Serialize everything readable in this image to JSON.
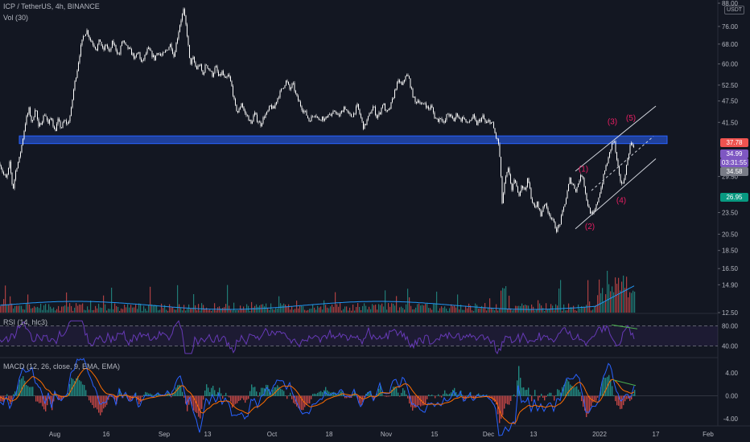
{
  "symbol_legend": "ICP / TetherUS, 4h, BINANCE",
  "volume_legend": "Vol (30)",
  "rsi_legend": "RSI (14, hlc3)",
  "macd_legend": "MACD (12, 26, close, 9, EMA, EMA)",
  "currency_badge": "USDT",
  "price_tags": {
    "high": "37.78",
    "last": "34.99",
    "countdown": "03:31:55",
    "mid": "34.58",
    "low": "26.95"
  },
  "colors": {
    "background": "#131722",
    "candle": "#ffffff",
    "zone": "#2962ff",
    "channel": "#d1d4dc",
    "wave_labels": "#e91e63",
    "volume_up": "#26a69a",
    "volume_down": "#ef5350",
    "volume_ma": "#2196f3",
    "rsi_line": "#673ab7",
    "macd_line": "#2962ff",
    "signal_line": "#ff6d00",
    "divergence": "#4caf50"
  },
  "chart_data": {
    "type": "candlestick",
    "price_axis": {
      "scale": "log",
      "range": [
        12.5,
        88
      ],
      "ticks": [
        "88.00",
        "76.00",
        "68.00",
        "60.00",
        "52.50",
        "47.50",
        "41.50",
        "34.58",
        "29.50",
        "23.50",
        "20.50",
        "18.50",
        "16.50",
        "14.90",
        "12.50"
      ]
    },
    "time_axis": {
      "ticks": [
        "Aug",
        "16",
        "Sep",
        "13",
        "Oct",
        "18",
        "Nov",
        "15",
        "Dec",
        "13",
        "2022",
        "17",
        "Feb"
      ]
    },
    "price_path": [
      [
        0,
        32
      ],
      [
        4,
        30
      ],
      [
        8,
        29
      ],
      [
        12,
        32
      ],
      [
        16,
        27
      ],
      [
        20,
        31
      ],
      [
        24,
        33
      ],
      [
        28,
        37
      ],
      [
        32,
        42
      ],
      [
        36,
        45
      ],
      [
        40,
        41
      ],
      [
        44,
        46
      ],
      [
        48,
        40
      ],
      [
        52,
        42
      ],
      [
        56,
        44
      ],
      [
        60,
        41
      ],
      [
        64,
        43
      ],
      [
        68,
        39
      ],
      [
        72,
        42
      ],
      [
        76,
        40
      ],
      [
        80,
        42
      ],
      [
        84,
        41
      ],
      [
        88,
        44
      ],
      [
        92,
        52
      ],
      [
        96,
        58
      ],
      [
        100,
        66
      ],
      [
        104,
        72
      ],
      [
        108,
        74
      ],
      [
        112,
        70
      ],
      [
        116,
        68
      ],
      [
        120,
        66
      ],
      [
        124,
        70
      ],
      [
        128,
        65
      ],
      [
        132,
        68
      ],
      [
        136,
        64
      ],
      [
        140,
        69
      ],
      [
        144,
        66
      ],
      [
        148,
        63
      ],
      [
        152,
        70
      ],
      [
        156,
        67
      ],
      [
        160,
        66
      ],
      [
        164,
        64
      ],
      [
        168,
        62
      ],
      [
        172,
        65
      ],
      [
        176,
        60
      ],
      [
        180,
        63
      ],
      [
        184,
        66
      ],
      [
        188,
        64
      ],
      [
        192,
        62
      ],
      [
        196,
        65
      ],
      [
        200,
        63
      ],
      [
        204,
        64
      ],
      [
        208,
        66
      ],
      [
        212,
        68
      ],
      [
        216,
        63
      ],
      [
        220,
        70
      ],
      [
        224,
        78
      ],
      [
        228,
        84
      ],
      [
        232,
        74
      ],
      [
        236,
        60
      ],
      [
        240,
        62
      ],
      [
        244,
        58
      ],
      [
        248,
        60
      ],
      [
        252,
        56
      ],
      [
        256,
        60
      ],
      [
        260,
        58
      ],
      [
        264,
        56
      ],
      [
        268,
        59
      ],
      [
        272,
        55
      ],
      [
        276,
        57
      ],
      [
        280,
        54
      ],
      [
        284,
        56
      ],
      [
        288,
        52
      ],
      [
        292,
        46
      ],
      [
        296,
        44
      ],
      [
        300,
        47
      ],
      [
        304,
        44
      ],
      [
        308,
        43
      ],
      [
        312,
        41
      ],
      [
        316,
        44
      ],
      [
        320,
        42
      ],
      [
        324,
        41
      ],
      [
        328,
        43
      ],
      [
        332,
        44
      ],
      [
        336,
        46
      ],
      [
        340,
        45
      ],
      [
        344,
        48
      ],
      [
        348,
        50
      ],
      [
        352,
        52
      ],
      [
        356,
        54
      ],
      [
        360,
        51
      ],
      [
        364,
        53
      ],
      [
        368,
        49
      ],
      [
        372,
        47
      ],
      [
        376,
        45
      ],
      [
        380,
        44
      ],
      [
        384,
        42
      ],
      [
        388,
        43
      ],
      [
        392,
        44
      ],
      [
        396,
        42
      ],
      [
        400,
        43
      ],
      [
        404,
        42
      ],
      [
        408,
        44
      ],
      [
        412,
        43
      ],
      [
        416,
        45
      ],
      [
        420,
        43
      ],
      [
        424,
        44
      ],
      [
        428,
        46
      ],
      [
        432,
        44
      ],
      [
        436,
        43
      ],
      [
        440,
        44
      ],
      [
        444,
        46
      ],
      [
        448,
        43
      ],
      [
        452,
        40
      ],
      [
        456,
        42
      ],
      [
        460,
        44
      ],
      [
        464,
        46
      ],
      [
        468,
        43
      ],
      [
        472,
        44
      ],
      [
        476,
        47
      ],
      [
        480,
        44
      ],
      [
        484,
        45
      ],
      [
        488,
        48
      ],
      [
        492,
        52
      ],
      [
        496,
        54
      ],
      [
        500,
        52
      ],
      [
        504,
        56
      ],
      [
        508,
        55
      ],
      [
        512,
        50
      ],
      [
        516,
        47
      ],
      [
        520,
        48
      ],
      [
        524,
        46
      ],
      [
        528,
        47
      ],
      [
        532,
        45
      ],
      [
        536,
        46
      ],
      [
        540,
        43
      ],
      [
        544,
        42
      ],
      [
        548,
        43
      ],
      [
        552,
        41
      ],
      [
        556,
        44
      ],
      [
        560,
        43
      ],
      [
        564,
        42
      ],
      [
        568,
        44
      ],
      [
        572,
        42
      ],
      [
        576,
        43
      ],
      [
        580,
        41
      ],
      [
        584,
        42
      ],
      [
        588,
        43
      ],
      [
        592,
        41
      ],
      [
        596,
        42
      ],
      [
        600,
        43
      ],
      [
        604,
        41
      ],
      [
        608,
        42
      ],
      [
        612,
        41
      ],
      [
        616,
        38
      ],
      [
        620,
        36
      ],
      [
        624,
        25
      ],
      [
        628,
        29
      ],
      [
        632,
        31
      ],
      [
        636,
        27
      ],
      [
        640,
        29
      ],
      [
        644,
        26
      ],
      [
        648,
        28
      ],
      [
        652,
        27
      ],
      [
        656,
        29
      ],
      [
        660,
        26
      ],
      [
        664,
        24
      ],
      [
        668,
        25
      ],
      [
        672,
        23
      ],
      [
        676,
        25
      ],
      [
        680,
        24
      ],
      [
        684,
        23
      ],
      [
        688,
        22
      ],
      [
        692,
        21
      ],
      [
        696,
        22
      ],
      [
        700,
        24
      ],
      [
        704,
        26
      ],
      [
        708,
        29
      ],
      [
        712,
        28
      ],
      [
        716,
        27
      ],
      [
        720,
        29
      ],
      [
        724,
        30
      ],
      [
        728,
        26
      ],
      [
        732,
        24
      ],
      [
        736,
        23
      ],
      [
        740,
        24
      ],
      [
        744,
        26
      ],
      [
        748,
        28
      ],
      [
        752,
        31
      ],
      [
        756,
        33
      ],
      [
        760,
        36
      ],
      [
        763,
        37.2
      ],
      [
        766,
        33
      ],
      [
        770,
        29
      ],
      [
        774,
        28
      ],
      [
        778,
        31
      ],
      [
        782,
        35
      ],
      [
        785,
        37
      ],
      [
        788,
        35
      ]
    ],
    "resistance_zone": {
      "from": 36.3,
      "to": 38.1
    },
    "wave_labels": [
      {
        "label": "(1)",
        "x": 725,
        "price": 30.4
      },
      {
        "label": "(2)",
        "x": 733,
        "price": 21.2
      },
      {
        "label": "(3)",
        "x": 761,
        "price": 41.0
      },
      {
        "label": "(4)",
        "x": 772,
        "price": 25.0
      },
      {
        "label": "(5)",
        "x": 784,
        "price": 42.0
      }
    ],
    "channel_lines": [
      {
        "from": [
          715,
          21.2
        ],
        "to": [
          815,
          33.0
        ]
      },
      {
        "from": [
          715,
          30.5
        ],
        "to": [
          815,
          46.0
        ]
      },
      {
        "from": [
          735,
          27.0
        ],
        "to": [
          812,
          38.0
        ],
        "dashed": true
      }
    ],
    "rsi": {
      "levels": [
        80.0,
        40.0
      ],
      "range": [
        20,
        100
      ]
    },
    "macd": {
      "levels": [
        4.0,
        0.0,
        -4.0
      ],
      "range": [
        -5,
        6
      ]
    }
  }
}
